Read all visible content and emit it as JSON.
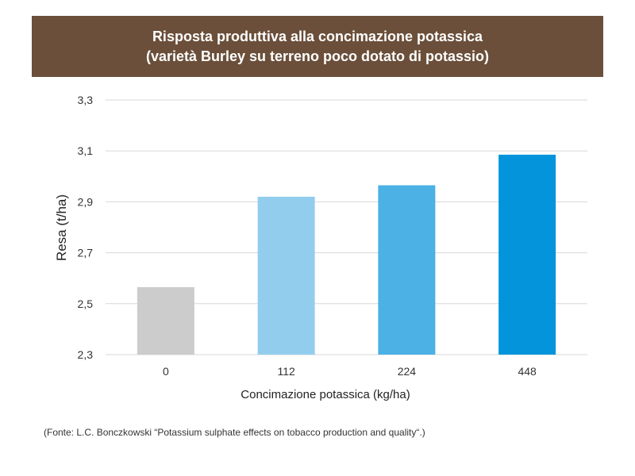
{
  "header": {
    "title_line1": "Risposta produttiva alla concimazione potassica",
    "title_line2": "(varietà Burley su terreno poco dotato di potassio)"
  },
  "source": "(Fonte: L.C. Bonczkowski “Potassium sulphate effects on tobacco production and quality“.)",
  "chart_data": {
    "type": "bar",
    "title": "Risposta produttiva alla concimazione potassica (varietà Burley su terreno poco dotato di potassio)",
    "xlabel": "Concimazione potassica (kg/ha)",
    "ylabel": "Resa (t/ha)",
    "categories": [
      "0",
      "112",
      "224",
      "448"
    ],
    "values": [
      2.565,
      2.92,
      2.965,
      3.085
    ],
    "colors": [
      "#cccccc",
      "#93cdee",
      "#4cb1e4",
      "#0394db"
    ],
    "ylim": [
      2.3,
      3.3
    ],
    "yticks": [
      2.3,
      2.5,
      2.7,
      2.9,
      3.1,
      3.3
    ],
    "ytick_labels": [
      "2,3",
      "2,5",
      "2,7",
      "2,9",
      "3,1",
      "3,3"
    ],
    "grid": true,
    "legend": "none"
  }
}
